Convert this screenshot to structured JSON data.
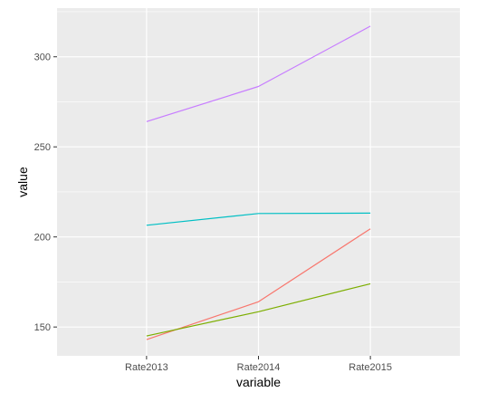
{
  "chart_data": {
    "type": "line",
    "title": "",
    "xlabel": "variable",
    "ylabel": "value",
    "categories": [
      "Rate2013",
      "Rate2014",
      "Rate2015"
    ],
    "ylim": [
      134,
      327
    ],
    "yticks": [
      150,
      200,
      250,
      300
    ],
    "grid": true,
    "legend": "none",
    "panel_background": "#ebebeb",
    "gridline_color": "#ffffff",
    "series": [
      {
        "color": "#F8766D",
        "values": [
          143,
          164,
          204.5
        ]
      },
      {
        "color": "#7CAE00",
        "values": [
          145,
          158.5,
          174
        ]
      },
      {
        "color": "#00BFC4",
        "values": [
          206.5,
          213,
          213.2
        ]
      },
      {
        "color": "#C77CFF",
        "values": [
          264,
          283.5,
          317
        ]
      }
    ]
  }
}
